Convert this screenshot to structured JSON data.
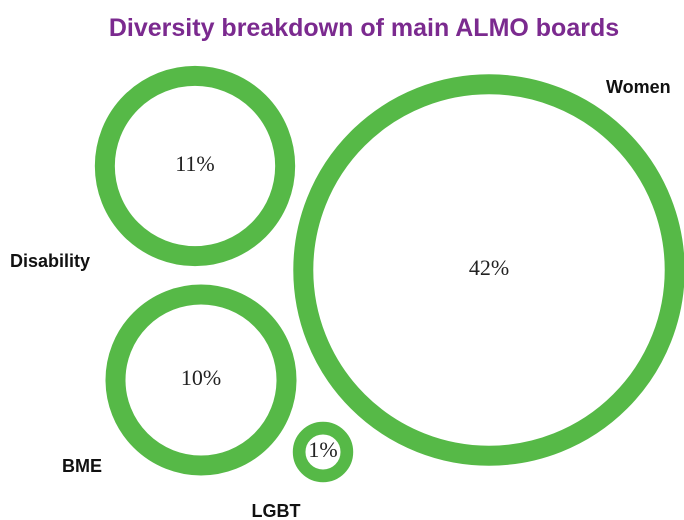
{
  "chart_data": {
    "type": "bubble",
    "title": "Diversity breakdown of main ALMO boards",
    "categories": [
      "Women",
      "Disability",
      "BME",
      "LGBT"
    ],
    "values": [
      42,
      11,
      10,
      1
    ],
    "value_labels": [
      "42%",
      "11%",
      "10%",
      "1%"
    ],
    "color": "#56b947"
  }
}
